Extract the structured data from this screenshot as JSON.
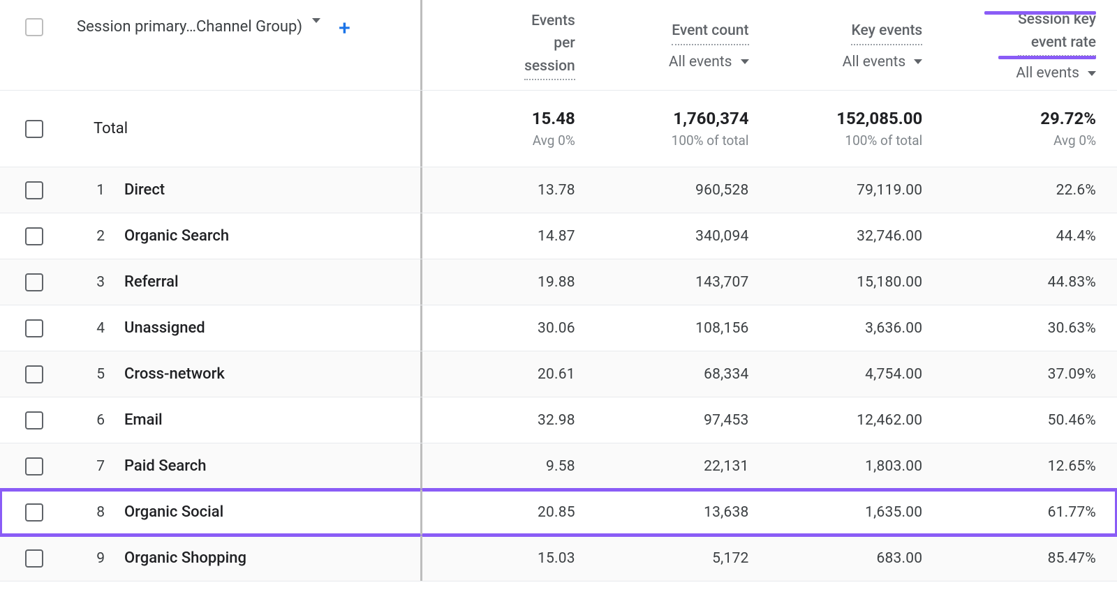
{
  "colors": {
    "highlight": "#8a5cf6",
    "text": "#202124",
    "muted": "#5f6368",
    "sub": "#80868b",
    "divider": "#bdbdbd",
    "border": "#e8eaed",
    "link": "#1a73e8",
    "alt_row_bg": "#fafafa"
  },
  "header": {
    "dimension_label": "Session primary…Channel Group)",
    "add_dimension_glyph": "+",
    "columns": [
      {
        "title_lines": [
          "Events",
          "per",
          "session"
        ],
        "selector": null
      },
      {
        "title_lines": [
          "Event count"
        ],
        "selector": "All events"
      },
      {
        "title_lines": [
          "Key events"
        ],
        "selector": "All events"
      },
      {
        "title_lines": [
          "Session key",
          "event rate"
        ],
        "selector": "All events",
        "highlight": true
      }
    ]
  },
  "totals": {
    "label": "Total",
    "values": [
      "15.48",
      "1,760,374",
      "152,085.00",
      "29.72%"
    ],
    "subs": [
      "Avg 0%",
      "100% of total",
      "100% of total",
      "Avg 0%"
    ]
  },
  "rows": [
    {
      "rank": "1",
      "name": "Direct",
      "values": [
        "13.78",
        "960,528",
        "79,119.00",
        "22.6%"
      ],
      "highlight": false
    },
    {
      "rank": "2",
      "name": "Organic Search",
      "values": [
        "14.87",
        "340,094",
        "32,746.00",
        "44.4%"
      ],
      "highlight": false
    },
    {
      "rank": "3",
      "name": "Referral",
      "values": [
        "19.88",
        "143,707",
        "15,180.00",
        "44.83%"
      ],
      "highlight": false
    },
    {
      "rank": "4",
      "name": "Unassigned",
      "values": [
        "30.06",
        "108,156",
        "3,636.00",
        "30.63%"
      ],
      "highlight": false
    },
    {
      "rank": "5",
      "name": "Cross-network",
      "values": [
        "20.61",
        "68,334",
        "4,754.00",
        "37.09%"
      ],
      "highlight": false
    },
    {
      "rank": "6",
      "name": "Email",
      "values": [
        "32.98",
        "97,453",
        "12,462.00",
        "50.46%"
      ],
      "highlight": false
    },
    {
      "rank": "7",
      "name": "Paid Search",
      "values": [
        "9.58",
        "22,131",
        "1,803.00",
        "12.65%"
      ],
      "highlight": false
    },
    {
      "rank": "8",
      "name": "Organic Social",
      "values": [
        "20.85",
        "13,638",
        "1,635.00",
        "61.77%"
      ],
      "highlight": true
    },
    {
      "rank": "9",
      "name": "Organic Shopping",
      "values": [
        "15.03",
        "5,172",
        "683.00",
        "85.47%"
      ],
      "highlight": false
    }
  ]
}
